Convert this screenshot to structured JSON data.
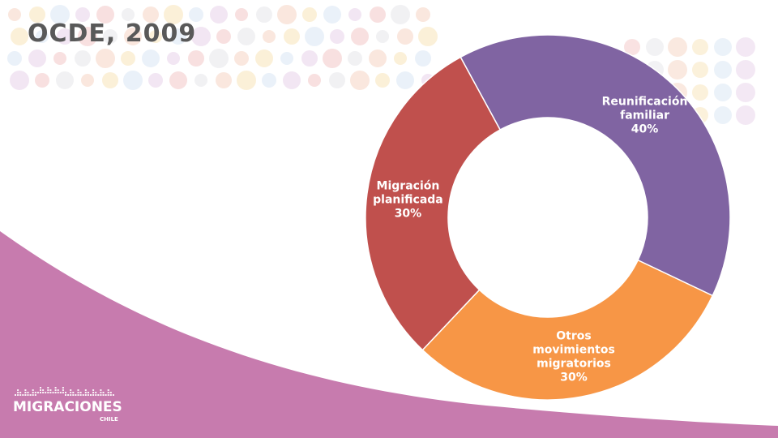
{
  "slide": {
    "title": "OCDE, 2009",
    "colors": {
      "wave": "#c77bae",
      "bubbles": [
        "#f6d3c2",
        "#f8e3b8",
        "#d8e6f4",
        "#e7d2e9",
        "#f3c6c6",
        "#e6e6ea"
      ]
    }
  },
  "logo": {
    "word": "MIGRACIONES",
    "sub": "CHILE",
    "icon": "dotted-map-icon"
  },
  "chart_data": {
    "type": "pie",
    "donut": true,
    "categories": [
      "Reunificación familiar",
      "Otros movimientos migratorios",
      "Migración planificada"
    ],
    "values": [
      40,
      30,
      30
    ],
    "unit": "%",
    "colors": [
      "#8064a2",
      "#f79646",
      "#c0504d"
    ],
    "labels": [
      {
        "lines": [
          "Reunificación",
          "familiar",
          "40%"
        ]
      },
      {
        "lines": [
          "Otros",
          "movimientos",
          "migratorios",
          "30%"
        ]
      },
      {
        "lines": [
          "Migración",
          "planificada",
          "30%"
        ]
      }
    ]
  }
}
